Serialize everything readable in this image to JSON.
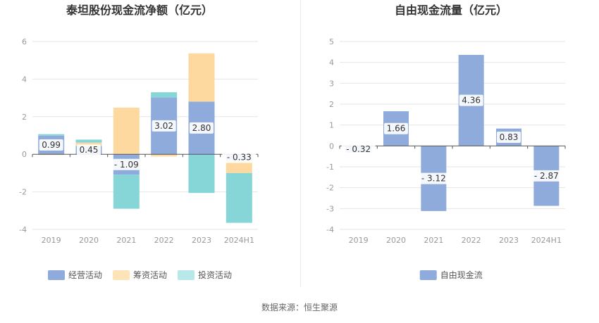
{
  "source_text": "数据来源：恒生聚源",
  "chart_data": [
    {
      "type": "bar",
      "stacked": true,
      "title": "泰坦股份现金流净额（亿元）",
      "categories": [
        "2019",
        "2020",
        "2021",
        "2022",
        "2023",
        "2024H1"
      ],
      "ylim": [
        -4,
        6
      ],
      "yticks": [
        -4,
        -2,
        0,
        2,
        4,
        6
      ],
      "grid": true,
      "legend_position": "bottom",
      "series": [
        {
          "name": "经营活动",
          "color": "#8eabdc",
          "values": [
            0.99,
            0.45,
            -1.09,
            3.02,
            2.8,
            -0.33
          ],
          "labels": true
        },
        {
          "name": "筹资活动",
          "color": "#fdd9a0",
          "values": [
            -0.04,
            0.17,
            2.48,
            -0.12,
            2.57,
            -0.67
          ],
          "labels": false
        },
        {
          "name": "投资活动",
          "color": "#86d6d8",
          "values": [
            0.08,
            0.16,
            -1.81,
            0.28,
            -2.06,
            -2.65
          ],
          "labels": false
        }
      ],
      "legend_colors": [
        "#8eabdc",
        "#fde3b8",
        "#b8e8e9"
      ]
    },
    {
      "type": "bar",
      "title": "自由现金流量（亿元）",
      "categories": [
        "2019",
        "2020",
        "2021",
        "2022",
        "2023",
        "2024H1"
      ],
      "ylim": [
        -4,
        5
      ],
      "yticks": [
        -4,
        -3,
        -2,
        -1,
        0,
        1,
        2,
        3,
        4,
        5
      ],
      "grid": true,
      "legend_position": "bottom",
      "series": [
        {
          "name": "自由现金流",
          "color": "#8eabdc",
          "values": [
            -0.32,
            1.66,
            -3.12,
            4.36,
            0.83,
            -2.87
          ],
          "labels": true
        }
      ],
      "legend_colors": [
        "#8eabdc"
      ]
    }
  ]
}
